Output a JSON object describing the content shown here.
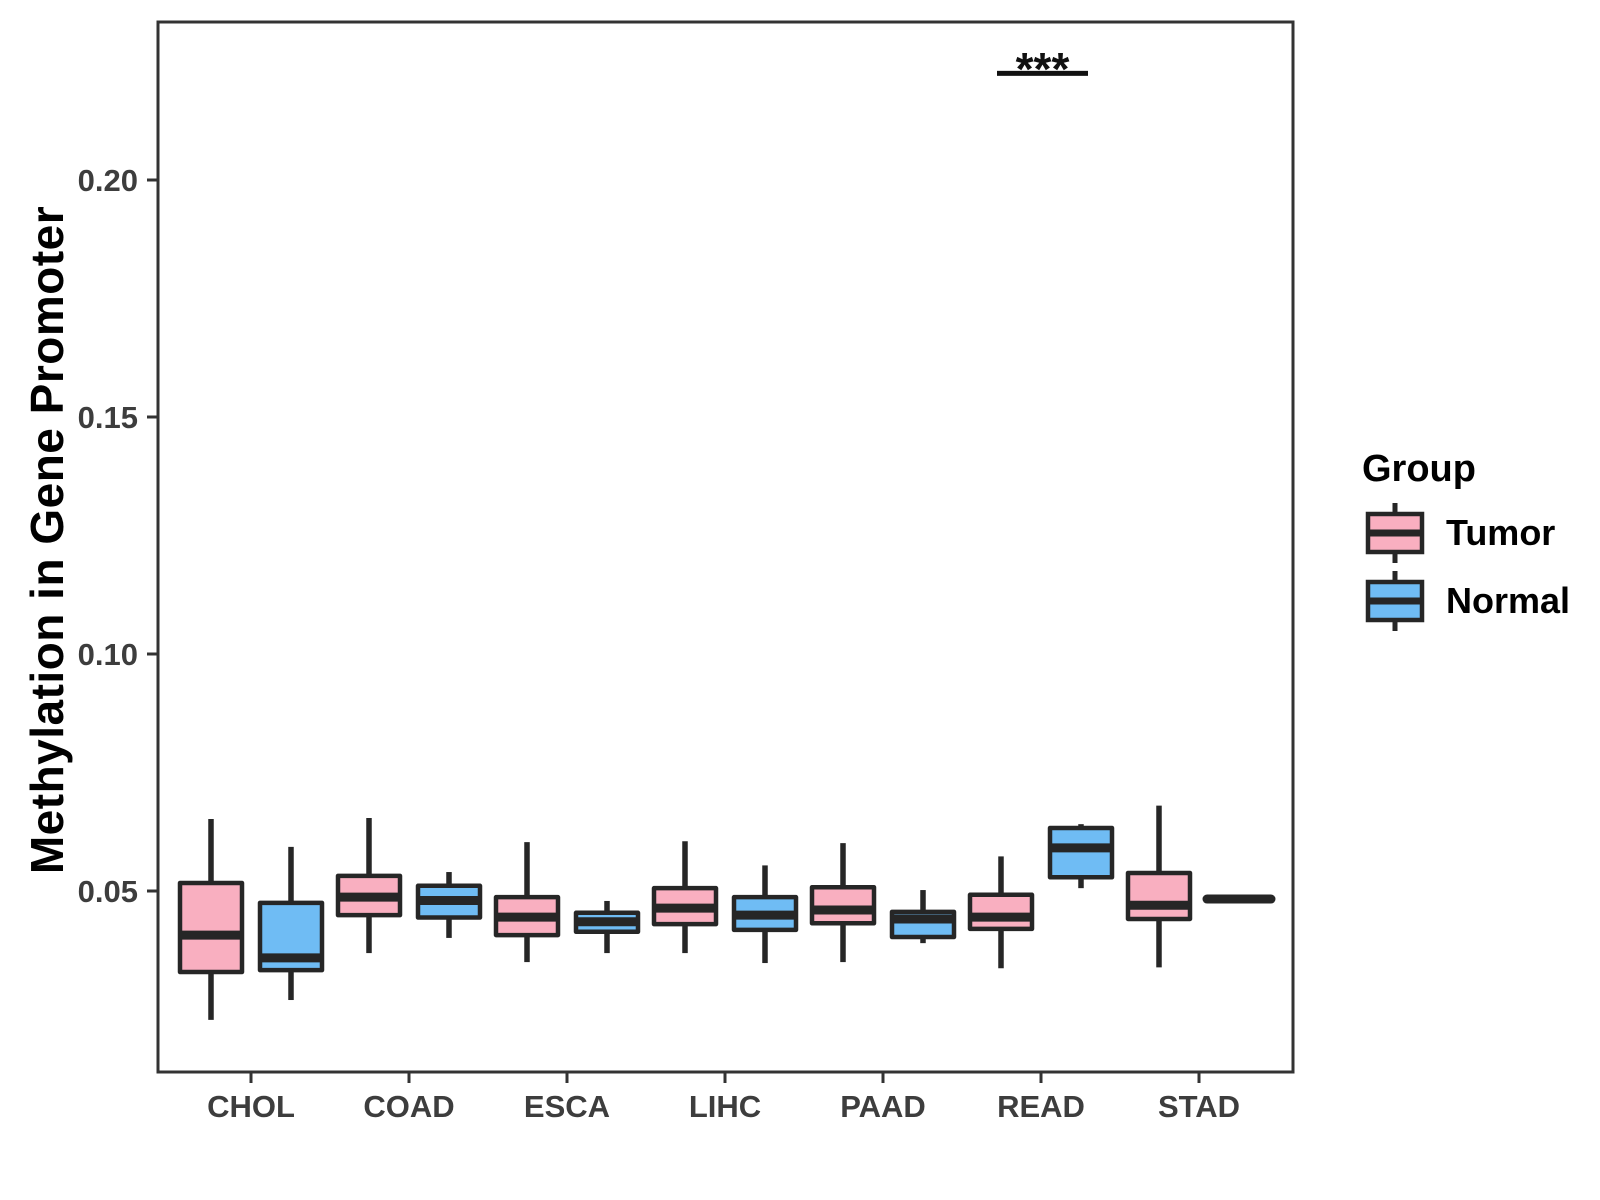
{
  "chart_data": {
    "type": "boxplot",
    "title": "",
    "xlabel": "",
    "ylabel": "Methylation in Gene Promoter",
    "categories": [
      "CHOL",
      "COAD",
      "ESCA",
      "LIHC",
      "PAAD",
      "READ",
      "STAD"
    ],
    "groups": [
      "Tumor",
      "Normal"
    ],
    "legend": {
      "title": "Group",
      "position": "right",
      "entries": [
        {
          "label": "Tumor",
          "color": "#F9AFC0"
        },
        {
          "label": "Normal",
          "color": "#6FBCF4"
        }
      ]
    },
    "axis": {
      "y_ticks": [
        0.2,
        0.15,
        0.1,
        0.05
      ],
      "y_tick_labels": [
        "0.20",
        "0.15",
        "0.10",
        "0.05"
      ],
      "ylim": [
        0.012,
        0.2335
      ],
      "grid": false
    },
    "series": [
      {
        "category": "CHOL",
        "group": "Tumor",
        "min": 0.0228,
        "q1": 0.0329,
        "median": 0.0407,
        "q3": 0.0517,
        "max": 0.0652
      },
      {
        "category": "CHOL",
        "group": "Normal",
        "min": 0.027,
        "q1": 0.0333,
        "median": 0.0359,
        "q3": 0.0475,
        "max": 0.0593
      },
      {
        "category": "COAD",
        "group": "Tumor",
        "min": 0.0369,
        "q1": 0.0449,
        "median": 0.0487,
        "q3": 0.0532,
        "max": 0.0654
      },
      {
        "category": "COAD",
        "group": "Normal",
        "min": 0.0401,
        "q1": 0.0444,
        "median": 0.048,
        "q3": 0.0511,
        "max": 0.054
      },
      {
        "category": "ESCA",
        "group": "Tumor",
        "min": 0.035,
        "q1": 0.0407,
        "median": 0.0445,
        "q3": 0.0487,
        "max": 0.0603
      },
      {
        "category": "ESCA",
        "group": "Normal",
        "min": 0.0369,
        "q1": 0.0414,
        "median": 0.0435,
        "q3": 0.0454,
        "max": 0.0479
      },
      {
        "category": "LIHC",
        "group": "Tumor",
        "min": 0.0369,
        "q1": 0.043,
        "median": 0.0464,
        "q3": 0.0506,
        "max": 0.0605
      },
      {
        "category": "LIHC",
        "group": "Normal",
        "min": 0.0348,
        "q1": 0.0418,
        "median": 0.0449,
        "q3": 0.0487,
        "max": 0.0554
      },
      {
        "category": "PAAD",
        "group": "Tumor",
        "min": 0.035,
        "q1": 0.0432,
        "median": 0.046,
        "q3": 0.0508,
        "max": 0.0601
      },
      {
        "category": "PAAD",
        "group": "Normal",
        "min": 0.039,
        "q1": 0.0403,
        "median": 0.0441,
        "q3": 0.0456,
        "max": 0.0502
      },
      {
        "category": "READ",
        "group": "Tumor",
        "min": 0.0337,
        "q1": 0.042,
        "median": 0.0445,
        "q3": 0.0492,
        "max": 0.0573
      },
      {
        "category": "READ",
        "group": "Normal",
        "min": 0.0506,
        "q1": 0.0529,
        "median": 0.0591,
        "q3": 0.0633,
        "max": 0.0641
      },
      {
        "category": "STAD",
        "group": "Tumor",
        "min": 0.0339,
        "q1": 0.0441,
        "median": 0.047,
        "q3": 0.0538,
        "max": 0.068
      },
      {
        "category": "STAD",
        "group": "Normal",
        "min": 0.0483,
        "q1": 0.0483,
        "median": 0.0483,
        "q3": 0.0483,
        "max": 0.0483
      }
    ],
    "annotations": [
      {
        "text": "***",
        "category": "READ",
        "bar_value": 0.2225,
        "label_value": 0.22
      }
    ],
    "style": {
      "box_border_color": "#262626",
      "median_color": "#262626",
      "axis_color": "#333333",
      "tick_label_color": "#3D3D3D",
      "panel_background": "#FFFFFF"
    }
  }
}
